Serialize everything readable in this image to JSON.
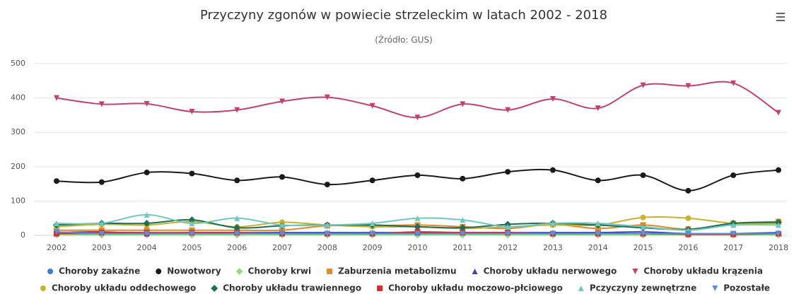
{
  "chart_data": {
    "type": "line",
    "title": "Przyczyny zgonów w powiecie strzeleckim w latach 2002 - 2018",
    "subtitle": "(Źródło: GUS)",
    "categories": [
      "2002",
      "2003",
      "2004",
      "2005",
      "2006",
      "2007",
      "2008",
      "2009",
      "2010",
      "2011",
      "2012",
      "2013",
      "2014",
      "2015",
      "2016",
      "2017",
      "2018"
    ],
    "ylim": [
      0,
      500
    ],
    "yticks": [
      0,
      100,
      200,
      300,
      400,
      500
    ],
    "grid": true,
    "series": [
      {
        "name": "Choroby zakaźne",
        "color": "#3d7fcf",
        "marker": "circle",
        "values": [
          3,
          5,
          3,
          3,
          3,
          4,
          4,
          3,
          2,
          3,
          3,
          3,
          3,
          3,
          2,
          2,
          3
        ]
      },
      {
        "name": "Nowotwory",
        "color": "#1a1a1a",
        "marker": "circle",
        "values": [
          158,
          155,
          183,
          180,
          160,
          170,
          148,
          160,
          175,
          165,
          185,
          190,
          160,
          175,
          130,
          175,
          190
        ]
      },
      {
        "name": "Choroby krwi",
        "color": "#8fe07c",
        "marker": "diamond",
        "values": [
          1,
          1,
          1,
          1,
          1,
          1,
          1,
          1,
          1,
          1,
          1,
          1,
          1,
          1,
          1,
          1,
          1
        ]
      },
      {
        "name": "Zaburzenia metabolizmu",
        "color": "#e08a2c",
        "marker": "square",
        "values": [
          15,
          15,
          15,
          15,
          15,
          15,
          28,
          28,
          30,
          25,
          20,
          32,
          20,
          30,
          18,
          35,
          40
        ]
      },
      {
        "name": "Choroby układu nerwowego",
        "color": "#4046a8",
        "marker": "triangle",
        "values": [
          8,
          10,
          5,
          8,
          8,
          8,
          8,
          8,
          8,
          8,
          8,
          8,
          8,
          10,
          5,
          5,
          8
        ]
      },
      {
        "name": "Choroby układu krązenia",
        "color": "#c3426b",
        "marker": "triangle-down",
        "values": [
          400,
          382,
          383,
          360,
          365,
          390,
          402,
          377,
          343,
          382,
          365,
          397,
          370,
          437,
          435,
          443,
          357
        ]
      },
      {
        "name": "Choroby układu oddechowego",
        "color": "#c9b22e",
        "marker": "circle",
        "values": [
          25,
          32,
          30,
          40,
          25,
          38,
          30,
          25,
          25,
          20,
          25,
          30,
          30,
          52,
          50,
          35,
          35
        ]
      },
      {
        "name": "Choroby układu trawiennego",
        "color": "#1f6e55",
        "marker": "diamond",
        "values": [
          30,
          35,
          35,
          45,
          22,
          28,
          30,
          30,
          25,
          22,
          32,
          35,
          30,
          22,
          17,
          35,
          38
        ]
      },
      {
        "name": "Choroby układu moczowo-płciowego",
        "color": "#d62d2d",
        "marker": "square",
        "values": [
          5,
          8,
          8,
          8,
          8,
          5,
          5,
          5,
          10,
          8,
          8,
          5,
          5,
          5,
          3,
          3,
          5
        ]
      },
      {
        "name": "Pczyczyny zewnętrzne",
        "color": "#6fc9c0",
        "marker": "triangle",
        "values": [
          35,
          35,
          60,
          35,
          50,
          30,
          30,
          35,
          50,
          45,
          25,
          35,
          35,
          25,
          15,
          30,
          30
        ]
      },
      {
        "name": "Pozostałe",
        "color": "#5b8fd9",
        "marker": "triangle-down",
        "values": [
          10,
          5,
          5,
          5,
          5,
          5,
          5,
          5,
          5,
          5,
          5,
          5,
          5,
          5,
          5,
          5,
          5
        ]
      }
    ]
  }
}
